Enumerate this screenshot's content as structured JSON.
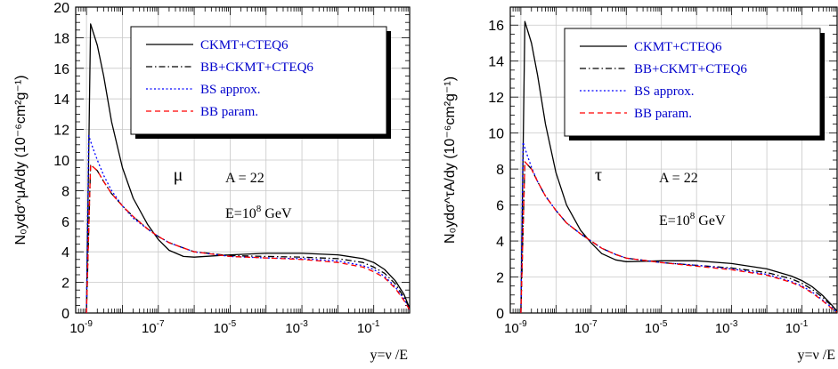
{
  "chart_data": [
    {
      "type": "line",
      "ylabel": "N₀ydσ^μA/dy (10⁻⁶cm²g⁻¹)",
      "xlabel": "y=ν /E",
      "x_scale": "log",
      "xlim": [
        5e-10,
        1
      ],
      "ylim": [
        0,
        20
      ],
      "x_ticks": [
        1e-09,
        1e-07,
        1e-05,
        0.001,
        0.1
      ],
      "x_tick_labels": [
        "10-9",
        "10-7",
        "10-5",
        "10-3",
        "10-1"
      ],
      "y_ticks": [
        0,
        2,
        4,
        6,
        8,
        10,
        12,
        14,
        16,
        18,
        20
      ],
      "grid": true,
      "legend_position": "top-right",
      "annotations": {
        "particle": "μ",
        "target": "A = 22",
        "energy": "E=10",
        "energy_exp": "8",
        "energy_unit": " GeV"
      },
      "series": [
        {
          "name": "CKMT+CTEQ6",
          "color": "#000000",
          "dash": "solid",
          "x": [
            1e-09,
            1.3e-09,
            2e-09,
            3e-09,
            5e-09,
            1e-08,
            2e-08,
            5e-08,
            1e-07,
            2e-07,
            5e-07,
            1e-06,
            1e-05,
            0.0001,
            0.001,
            0.01,
            0.05,
            0.1,
            0.2,
            0.4,
            0.7,
            1
          ],
          "values": [
            0,
            18.9,
            17.5,
            15.5,
            12.5,
            9.5,
            7.5,
            5.8,
            4.8,
            4.1,
            3.7,
            3.65,
            3.8,
            3.9,
            3.9,
            3.8,
            3.55,
            3.3,
            2.85,
            2.1,
            1.2,
            0.3
          ]
        },
        {
          "name": "BB+CKMT+CTEQ6",
          "color": "#000000",
          "dash": "dashdot",
          "x": [
            1e-09,
            1.3e-09,
            2e-09,
            3e-09,
            5e-09,
            1e-08,
            2e-08,
            5e-08,
            1e-07,
            2e-07,
            5e-07,
            1e-06,
            1e-05,
            0.0001,
            0.001,
            0.01,
            0.05,
            0.1,
            0.2,
            0.4,
            0.7,
            1
          ],
          "values": [
            0,
            9.7,
            9.3,
            8.6,
            7.8,
            7.0,
            6.3,
            5.5,
            5.0,
            4.6,
            4.25,
            4.0,
            3.75,
            3.7,
            3.65,
            3.55,
            3.3,
            3.0,
            2.6,
            1.9,
            1.0,
            0.3
          ]
        },
        {
          "name": "BS approx.",
          "color": "#0000ff",
          "dash": "dotted",
          "x": [
            1e-09,
            1.15e-09,
            1.5e-09,
            2e-09,
            3e-09,
            5e-09,
            1e-08,
            2e-08,
            5e-08,
            1e-07,
            2e-07,
            5e-07,
            1e-06,
            1e-05,
            0.0001,
            0.001,
            0.01,
            0.05,
            0.1,
            0.2,
            0.4,
            0.7,
            1
          ],
          "values": [
            0,
            11.6,
            10.8,
            10.0,
            9.0,
            8.0,
            7.0,
            6.2,
            5.5,
            5.0,
            4.6,
            4.25,
            4.0,
            3.7,
            3.6,
            3.55,
            3.4,
            3.1,
            2.85,
            2.4,
            1.7,
            0.9,
            0.2
          ]
        },
        {
          "name": "BB param.",
          "color": "#ff0000",
          "dash": "dashed",
          "x": [
            1e-09,
            1.3e-09,
            2e-09,
            3e-09,
            5e-09,
            1e-08,
            2e-08,
            5e-08,
            1e-07,
            2e-07,
            5e-07,
            1e-06,
            1e-05,
            0.0001,
            0.001,
            0.01,
            0.05,
            0.1,
            0.2,
            0.4,
            0.7,
            1
          ],
          "values": [
            0,
            9.7,
            9.3,
            8.6,
            7.8,
            7.0,
            6.3,
            5.5,
            5.0,
            4.6,
            4.25,
            4.0,
            3.7,
            3.6,
            3.5,
            3.3,
            3.0,
            2.7,
            2.3,
            1.6,
            0.8,
            0.2
          ]
        }
      ]
    },
    {
      "type": "line",
      "ylabel": "N₀ydσ^τA/dy (10⁻⁶cm²g⁻¹)",
      "xlabel": "y=ν /E",
      "x_scale": "log",
      "xlim": [
        5e-10,
        1
      ],
      "ylim": [
        0,
        17
      ],
      "x_ticks": [
        1e-09,
        1e-07,
        1e-05,
        0.001,
        0.1
      ],
      "x_tick_labels": [
        "10-9",
        "10-7",
        "10-5",
        "10-3",
        "10-1"
      ],
      "y_ticks": [
        0,
        2,
        4,
        6,
        8,
        10,
        12,
        14,
        16
      ],
      "grid": true,
      "legend_position": "top-right",
      "annotations": {
        "particle": "τ",
        "target": "A = 22",
        "energy": "E=10",
        "energy_exp": "8",
        "energy_unit": " GeV"
      },
      "series": [
        {
          "name": "CKMT+CTEQ6",
          "color": "#000000",
          "dash": "solid",
          "x": [
            1e-09,
            1.3e-09,
            2e-09,
            3e-09,
            5e-09,
            1e-08,
            2e-08,
            5e-08,
            1e-07,
            2e-07,
            5e-07,
            1e-06,
            1e-05,
            0.0001,
            0.001,
            0.01,
            0.05,
            0.1,
            0.2,
            0.4,
            0.7,
            1
          ],
          "values": [
            0,
            16.2,
            15.0,
            13.2,
            10.5,
            7.8,
            6.0,
            4.6,
            3.9,
            3.3,
            2.95,
            2.85,
            2.9,
            2.9,
            2.75,
            2.45,
            2.05,
            1.8,
            1.45,
            0.95,
            0.45,
            0.1
          ]
        },
        {
          "name": "BB+CKMT+CTEQ6",
          "color": "#000000",
          "dash": "dashdot",
          "x": [
            1e-09,
            1.3e-09,
            2e-09,
            3e-09,
            5e-09,
            1e-08,
            2e-08,
            5e-08,
            1e-07,
            2e-07,
            5e-07,
            1e-06,
            1e-05,
            0.0001,
            0.001,
            0.01,
            0.05,
            0.1,
            0.2,
            0.4,
            0.7,
            1
          ],
          "values": [
            0,
            8.4,
            8.0,
            7.3,
            6.5,
            5.7,
            5.0,
            4.4,
            4.0,
            3.6,
            3.25,
            3.05,
            2.8,
            2.65,
            2.5,
            2.25,
            1.9,
            1.65,
            1.3,
            0.85,
            0.4,
            0.1
          ]
        },
        {
          "name": "BS approx.",
          "color": "#0000ff",
          "dash": "dotted",
          "x": [
            1e-09,
            1.15e-09,
            1.5e-09,
            2e-09,
            3e-09,
            5e-09,
            1e-08,
            2e-08,
            5e-08,
            1e-07,
            2e-07,
            5e-07,
            1e-06,
            1e-05,
            0.0001,
            0.001,
            0.01,
            0.05,
            0.1,
            0.2,
            0.4,
            0.7,
            1
          ],
          "values": [
            0,
            9.5,
            8.8,
            8.1,
            7.3,
            6.5,
            5.7,
            5.0,
            4.4,
            4.0,
            3.6,
            3.25,
            3.05,
            2.8,
            2.65,
            2.45,
            2.15,
            1.75,
            1.5,
            1.15,
            0.7,
            0.3,
            0.05
          ]
        },
        {
          "name": "BB param.",
          "color": "#ff0000",
          "dash": "dashed",
          "x": [
            1e-09,
            1.3e-09,
            2e-09,
            3e-09,
            5e-09,
            1e-08,
            2e-08,
            5e-08,
            1e-07,
            2e-07,
            5e-07,
            1e-06,
            1e-05,
            0.0001,
            0.001,
            0.01,
            0.05,
            0.1,
            0.2,
            0.4,
            0.7,
            1
          ],
          "values": [
            0,
            8.4,
            8.0,
            7.3,
            6.5,
            5.7,
            5.0,
            4.4,
            4.0,
            3.6,
            3.25,
            3.05,
            2.8,
            2.6,
            2.4,
            2.1,
            1.7,
            1.45,
            1.1,
            0.65,
            0.25,
            0.05
          ]
        }
      ]
    }
  ]
}
